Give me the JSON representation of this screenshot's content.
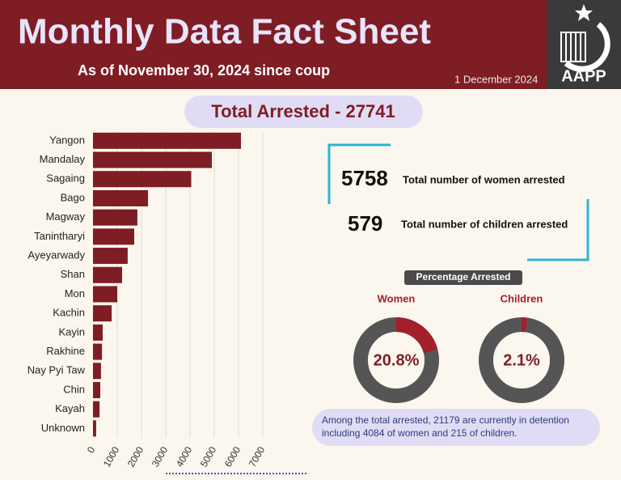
{
  "header": {
    "title": "Monthly Data Fact Sheet",
    "subtitle": "As of November 30, 2024 since coup",
    "date": "1 December 2024",
    "logo": "AAPP"
  },
  "total": "Total Arrested - 27741",
  "chart_data": {
    "type": "bar",
    "orientation": "horizontal",
    "categories": [
      "Yangon",
      "Mandalay",
      "Sagaing",
      "Bago",
      "Magway",
      "Tanintharyi",
      "Ayeyarwady",
      "Shan",
      "Mon",
      "Kachin",
      "Kayin",
      "Rakhine",
      "Nay Pyi Taw",
      "Chin",
      "Kayah",
      "Unknown"
    ],
    "values": [
      6100,
      4900,
      4050,
      2270,
      1830,
      1700,
      1430,
      1200,
      1000,
      770,
      400,
      370,
      330,
      300,
      270,
      130
    ],
    "color": "#7f1d24",
    "xlim": [
      0,
      7000
    ],
    "xticks": [
      0,
      1000,
      2000,
      3000,
      4000,
      5000,
      6000,
      7000
    ],
    "grid": true
  },
  "stats": [
    {
      "value": 5758,
      "label": "Total number of women arrested"
    },
    {
      "value": 579,
      "label": "Total number of children arrested"
    }
  ],
  "percentages": {
    "type": "donut",
    "title": "Percentage Arrested",
    "color": "#a31f2a",
    "track_color": "#555555",
    "items": [
      {
        "name": "Women",
        "value": 20.8,
        "value_label": "20.8%"
      },
      {
        "name": "Children",
        "value": 2.1,
        "value_label": "2.1%"
      }
    ]
  },
  "note": [
    "Among the total arrested, 21179 are currently in detention",
    "including 4084 of women and 215 of children."
  ]
}
